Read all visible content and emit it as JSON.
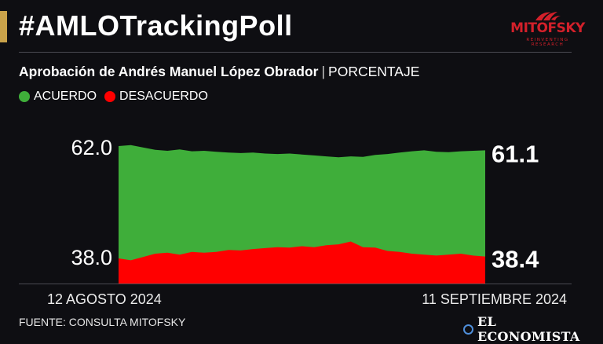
{
  "header": {
    "hashtag": "#AMLOTrackingPoll",
    "logo_text": "MITOFSKY",
    "logo_tagline": "REINVENTING RESEARCH"
  },
  "subtitle": {
    "main": "Aprobación de Andrés Manuel López Obrador",
    "separator": "|",
    "unit": "PORCENTAJE"
  },
  "legend": {
    "acuerdo": "ACUERDO",
    "desacuerdo": "DESACUERDO"
  },
  "colors": {
    "acuerdo": "#3fae3a",
    "desacuerdo": "#ff0000",
    "background": "#0e0e12",
    "accent": "#c9a24a"
  },
  "chart_data": {
    "type": "area",
    "x_start_label": "12 AGOSTO 2024",
    "x_end_label": "11 SEPTIEMBRE 2024",
    "series": [
      {
        "name": "ACUERDO",
        "values": [
          62.0,
          62.2,
          61.7,
          61.2,
          61.0,
          61.3,
          60.9,
          61.0,
          60.8,
          60.6,
          60.5,
          60.6,
          60.4,
          60.3,
          60.4,
          60.2,
          60.0,
          59.8,
          59.6,
          59.8,
          59.7,
          60.1,
          60.3,
          60.6,
          60.9,
          61.1,
          60.8,
          60.7,
          60.9,
          61.0,
          61.1
        ]
      },
      {
        "name": "DESACUERDO",
        "values": [
          38.0,
          37.6,
          38.3,
          39.0,
          39.2,
          38.8,
          39.4,
          39.2,
          39.4,
          39.8,
          39.7,
          40.0,
          40.2,
          40.4,
          40.3,
          40.6,
          40.4,
          40.8,
          41.0,
          41.6,
          40.4,
          40.3,
          39.6,
          39.4,
          39.0,
          38.8,
          38.6,
          38.8,
          39.0,
          38.6,
          38.4
        ]
      }
    ],
    "start_labels": {
      "acuerdo": "62.0",
      "desacuerdo": "38.0"
    },
    "end_labels": {
      "acuerdo": "61.1",
      "desacuerdo": "38.4"
    }
  },
  "footer": {
    "source": "FUENTE: CONSULTA MITOFSKY",
    "publisher": "EL ECONOMISTA"
  }
}
